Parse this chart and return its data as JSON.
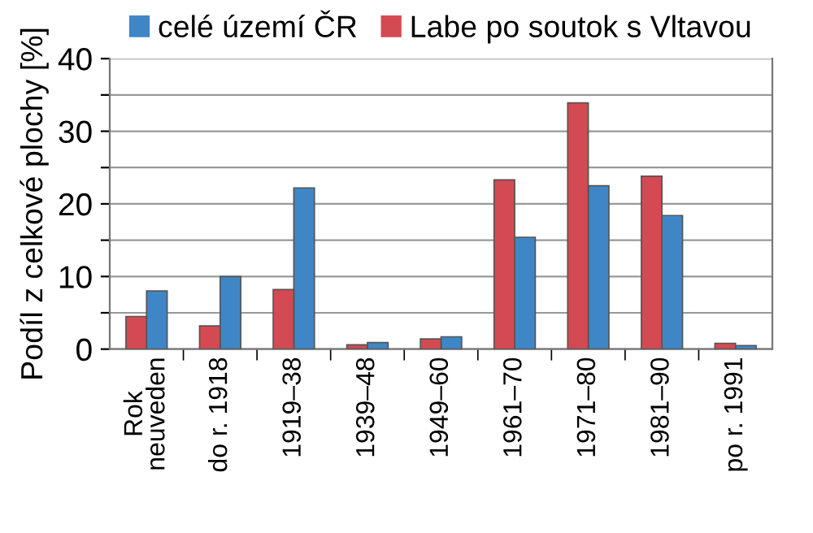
{
  "chart_data": {
    "type": "bar",
    "ylabel": "Podíl z celkové plochy [%]",
    "categories": [
      "Rok\nneuveden",
      "do r. 1918",
      "1919–38",
      "1939–48",
      "1949–60",
      "1961–70",
      "1971–80",
      "1981–90",
      "po r. 1991"
    ],
    "series": [
      {
        "name": "celé území ČR",
        "color": "#3f86c6",
        "values": [
          8,
          10,
          22.2,
          0.9,
          1.7,
          15.4,
          22.5,
          18.4,
          0.5
        ]
      },
      {
        "name": "Labe po soutok s Vltavou",
        "color": "#d44a52",
        "values": [
          4.5,
          3.2,
          8.2,
          0.6,
          1.4,
          23.3,
          33.9,
          23.8,
          0.8
        ]
      }
    ],
    "ylim": [
      0,
      40
    ],
    "yticks": [
      0,
      {
        "value": 5,
        "label": null
      },
      10,
      {
        "value": 15,
        "label": null
      },
      20,
      {
        "value": 25,
        "label": null
      },
      30,
      {
        "value": 35,
        "label": null
      },
      40
    ],
    "grid": "y",
    "legend": "top"
  }
}
